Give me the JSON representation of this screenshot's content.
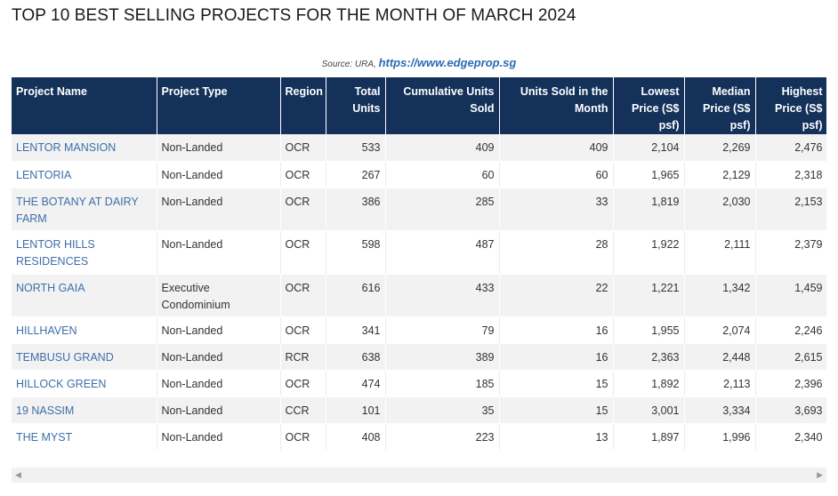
{
  "title": "TOP 10 BEST SELLING PROJECTS FOR THE MONTH OF MARCH 2024",
  "source": {
    "label": "Source: URA,",
    "url": "https://www.edgeprop.sg"
  },
  "headers": {
    "name": "Project Name",
    "type": "Project Type",
    "region": "Region",
    "total": "Total Units",
    "cumulative": "Cumulative Units Sold",
    "month": "Units Sold in the Month",
    "lowest": "Lowest Price (S$ psf)",
    "median": "Median Price (S$ psf)",
    "highest": "Highest Price (S$ psf)"
  },
  "rows": [
    {
      "name": "LENTOR MANSION",
      "type": "Non-Landed",
      "region": "OCR",
      "total": "533",
      "cumulative": "409",
      "month": "409",
      "lowest": "2,104",
      "median": "2,269",
      "highest": "2,476"
    },
    {
      "name": "LENTORIA",
      "type": "Non-Landed",
      "region": "OCR",
      "total": "267",
      "cumulative": "60",
      "month": "60",
      "lowest": "1,965",
      "median": "2,129",
      "highest": "2,318"
    },
    {
      "name": "THE BOTANY AT DAIRY FARM",
      "type": "Non-Landed",
      "region": "OCR",
      "total": "386",
      "cumulative": "285",
      "month": "33",
      "lowest": "1,819",
      "median": "2,030",
      "highest": "2,153"
    },
    {
      "name": "LENTOR HILLS RESIDENCES",
      "type": "Non-Landed",
      "region": "OCR",
      "total": "598",
      "cumulative": "487",
      "month": "28",
      "lowest": "1,922",
      "median": "2,111",
      "highest": "2,379"
    },
    {
      "name": "NORTH GAIA",
      "type": "Executive Condominium",
      "region": "OCR",
      "total": "616",
      "cumulative": "433",
      "month": "22",
      "lowest": "1,221",
      "median": "1,342",
      "highest": "1,459"
    },
    {
      "name": "HILLHAVEN",
      "type": "Non-Landed",
      "region": "OCR",
      "total": "341",
      "cumulative": "79",
      "month": "16",
      "lowest": "1,955",
      "median": "2,074",
      "highest": "2,246"
    },
    {
      "name": "TEMBUSU GRAND",
      "type": "Non-Landed",
      "region": "RCR",
      "total": "638",
      "cumulative": "389",
      "month": "16",
      "lowest": "2,363",
      "median": "2,448",
      "highest": "2,615"
    },
    {
      "name": "HILLOCK GREEN",
      "type": "Non-Landed",
      "region": "OCR",
      "total": "474",
      "cumulative": "185",
      "month": "15",
      "lowest": "1,892",
      "median": "2,113",
      "highest": "2,396"
    },
    {
      "name": "19 NASSIM",
      "type": "Non-Landed",
      "region": "CCR",
      "total": "101",
      "cumulative": "35",
      "month": "15",
      "lowest": "3,001",
      "median": "3,334",
      "highest": "3,693"
    },
    {
      "name": "THE MYST",
      "type": "Non-Landed",
      "region": "OCR",
      "total": "408",
      "cumulative": "223",
      "month": "13",
      "lowest": "1,897",
      "median": "1,996",
      "highest": "2,340"
    }
  ],
  "icons": {
    "scroll_left": "left-arrow-icon",
    "scroll_right": "right-arrow-icon"
  }
}
